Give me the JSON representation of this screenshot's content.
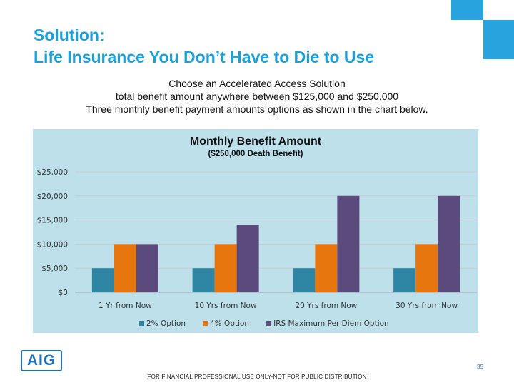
{
  "slide": {
    "title_line1": "Solution:",
    "title_line2": "Life Insurance You Don’t Have to Die to Use",
    "intro_line1": "Choose an Accelerated Access Solution",
    "intro_line2": "total benefit amount anywhere between $125,000 and $250,000",
    "intro_line3": "Three monthly benefit payment amounts options as shown in the chart below.",
    "footer": "FOR FINANCIAL PROFESSIONAL USE ONLY-NOT FOR PUBLIC DISTRIBUTION",
    "page_number": "35",
    "logo": "AIG",
    "accent_color": "#1aa0db"
  },
  "chart_data": {
    "type": "bar",
    "title": "Monthly Benefit Amount",
    "subtitle": "($250,000 Death Benefit)",
    "categories": [
      "1 Yr from Now",
      "10 Yrs from Now",
      "20 Yrs from Now",
      "30 Yrs from Now"
    ],
    "series": [
      {
        "name": "2% Option",
        "color": "#2e86a4",
        "values": [
          5000,
          5000,
          5000,
          5000
        ]
      },
      {
        "name": "4% Option",
        "color": "#e8760f",
        "values": [
          10000,
          10000,
          10000,
          10000
        ]
      },
      {
        "name": "IRS Maximum Per Diem Option",
        "color": "#5b4a7c",
        "values": [
          10000,
          14000,
          20000,
          20000
        ]
      }
    ],
    "yticks": [
      "$0",
      "$5,000",
      "$10,000",
      "$15,000",
      "$20,000",
      "$25,000"
    ],
    "ylim": [
      0,
      25000
    ],
    "grid": true,
    "legend": "bottom",
    "background": "#bde0ea"
  }
}
